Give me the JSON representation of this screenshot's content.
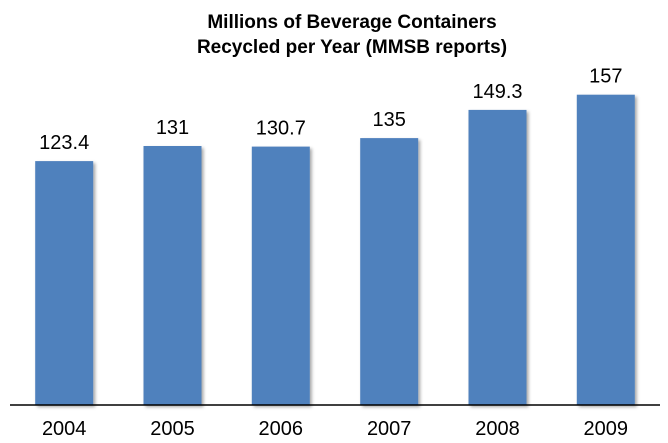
{
  "chart_data": {
    "type": "bar",
    "title_lines": [
      "Millions of Beverage Containers",
      "Recycled per Year (MMSB reports)"
    ],
    "categories": [
      "2004",
      "2005",
      "2006",
      "2007",
      "2008",
      "2009"
    ],
    "values": [
      123.4,
      131,
      130.7,
      135,
      149.3,
      157
    ],
    "value_labels": [
      "123.4",
      "131",
      "130.7",
      "135",
      "149.3",
      "157"
    ],
    "ylim": [
      0,
      172
    ],
    "grid": false,
    "legend": "none",
    "bar_color": "#4F81BD",
    "axis_color": "#000000",
    "xlabel": "",
    "ylabel": ""
  }
}
